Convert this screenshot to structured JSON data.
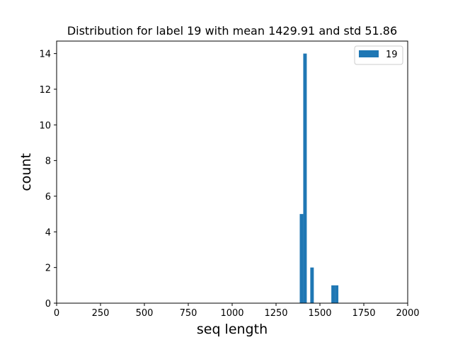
{
  "chart_data": {
    "type": "bar",
    "title": "Distribution for label 19 with mean 1429.91 and std 51.86",
    "xlabel": "seq length",
    "ylabel": "count",
    "xlim": [
      0,
      2000
    ],
    "ylim": [
      0,
      14.7
    ],
    "xticks": [
      0,
      250,
      500,
      750,
      1000,
      1250,
      1500,
      1750,
      2000
    ],
    "yticks": [
      0,
      2,
      4,
      6,
      8,
      10,
      12,
      14
    ],
    "grid": false,
    "legend_position": "top-right",
    "color": "#1f77b4",
    "series": [
      {
        "name": "19",
        "bins": [
          {
            "x0": 1385,
            "x1": 1405,
            "count": 5
          },
          {
            "x0": 1405,
            "x1": 1425,
            "count": 14
          },
          {
            "x0": 1445,
            "x1": 1465,
            "count": 2
          },
          {
            "x0": 1565,
            "x1": 1585,
            "count": 1
          },
          {
            "x0": 1585,
            "x1": 1605,
            "count": 1
          }
        ]
      }
    ]
  }
}
